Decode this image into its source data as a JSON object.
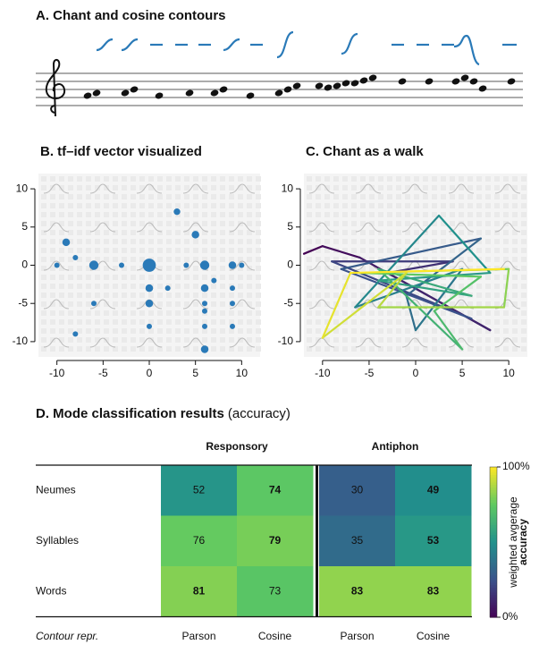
{
  "chart_data": [
    {
      "type": "staff",
      "title": "A. Chant and cosine contours"
    },
    {
      "type": "scatter",
      "title": "B. tf–idf vector visualized",
      "color": "#2a7ab8",
      "x": [
        -10,
        -9,
        -8,
        -8,
        -6,
        -6,
        -3,
        0,
        0,
        0,
        0,
        2,
        3,
        4,
        5,
        6,
        6,
        6,
        6,
        6,
        6,
        7,
        9,
        9,
        9,
        9,
        10
      ],
      "y": [
        0,
        3,
        1,
        -9,
        0,
        -5,
        0,
        0,
        -3,
        -5,
        -8,
        -3,
        7,
        0,
        4,
        0,
        -3,
        -5,
        -6,
        -8,
        -11,
        -2,
        0,
        -3,
        -5,
        -8,
        0
      ],
      "sizes": [
        1,
        2,
        1,
        1,
        3,
        1,
        1,
        6,
        2,
        2,
        1,
        1,
        1.5,
        1,
        2,
        3,
        2,
        1,
        1,
        1,
        2,
        1,
        2,
        1,
        1,
        1,
        1
      ],
      "xlim": [
        -12,
        12
      ],
      "ylim": [
        -12,
        12
      ],
      "xticks": [
        -10,
        -5,
        0,
        5,
        10
      ],
      "yticks": [
        -10,
        -5,
        0,
        5,
        10
      ]
    },
    {
      "type": "walk",
      "title": "C. Chant as a walk",
      "colormap": "viridis",
      "x": [
        -12,
        -10,
        -6,
        8,
        -3,
        4,
        -9,
        6,
        -8,
        7,
        -1,
        0,
        5,
        -6.5,
        2.5,
        8,
        -4,
        6,
        -4,
        5,
        2,
        7,
        -6,
        10,
        9.5,
        -4,
        -1,
        -10,
        -7,
        9.5
      ],
      "y": [
        1.5,
        2.5,
        1,
        -8.5,
        -1,
        0.5,
        0.5,
        -7,
        -0.5,
        3.5,
        -4,
        -8.5,
        -0.5,
        -5.5,
        6.5,
        -1,
        -2,
        -4,
        -0.5,
        -11,
        -6,
        -1.5,
        -1,
        -0.5,
        -5.5,
        -5.5,
        -1,
        -9.5,
        -1,
        -0.5
      ],
      "xlim": [
        -12,
        12
      ],
      "ylim": [
        -12,
        12
      ],
      "xticks": [
        -10,
        -5,
        0,
        5,
        10
      ],
      "yticks": [
        -10,
        -5,
        0,
        5,
        10
      ]
    },
    {
      "type": "heatmap",
      "title": "D. Mode classification results",
      "subtitle": "(accuracy)",
      "column_groups": [
        "Responsory",
        "Antiphon"
      ],
      "columns": [
        "Parson",
        "Cosine",
        "Parson",
        "Cosine"
      ],
      "rows": [
        "Neumes",
        "Syllables",
        "Words"
      ],
      "x_label": "Contour repr.",
      "values": [
        [
          52,
          74,
          30,
          49
        ],
        [
          76,
          79,
          35,
          53
        ],
        [
          81,
          73,
          83,
          83
        ]
      ],
      "bold": [
        [
          false,
          true,
          false,
          true
        ],
        [
          false,
          true,
          false,
          true
        ],
        [
          true,
          false,
          true,
          true
        ]
      ],
      "colormap": "viridis",
      "clim": [
        0,
        100
      ],
      "colorbar_ticks": [
        {
          "value": 0,
          "label": "0%"
        },
        {
          "value": 100,
          "label": "100%"
        }
      ],
      "colorbar_label": [
        "weighted avgerage",
        "accuracy"
      ]
    }
  ]
}
